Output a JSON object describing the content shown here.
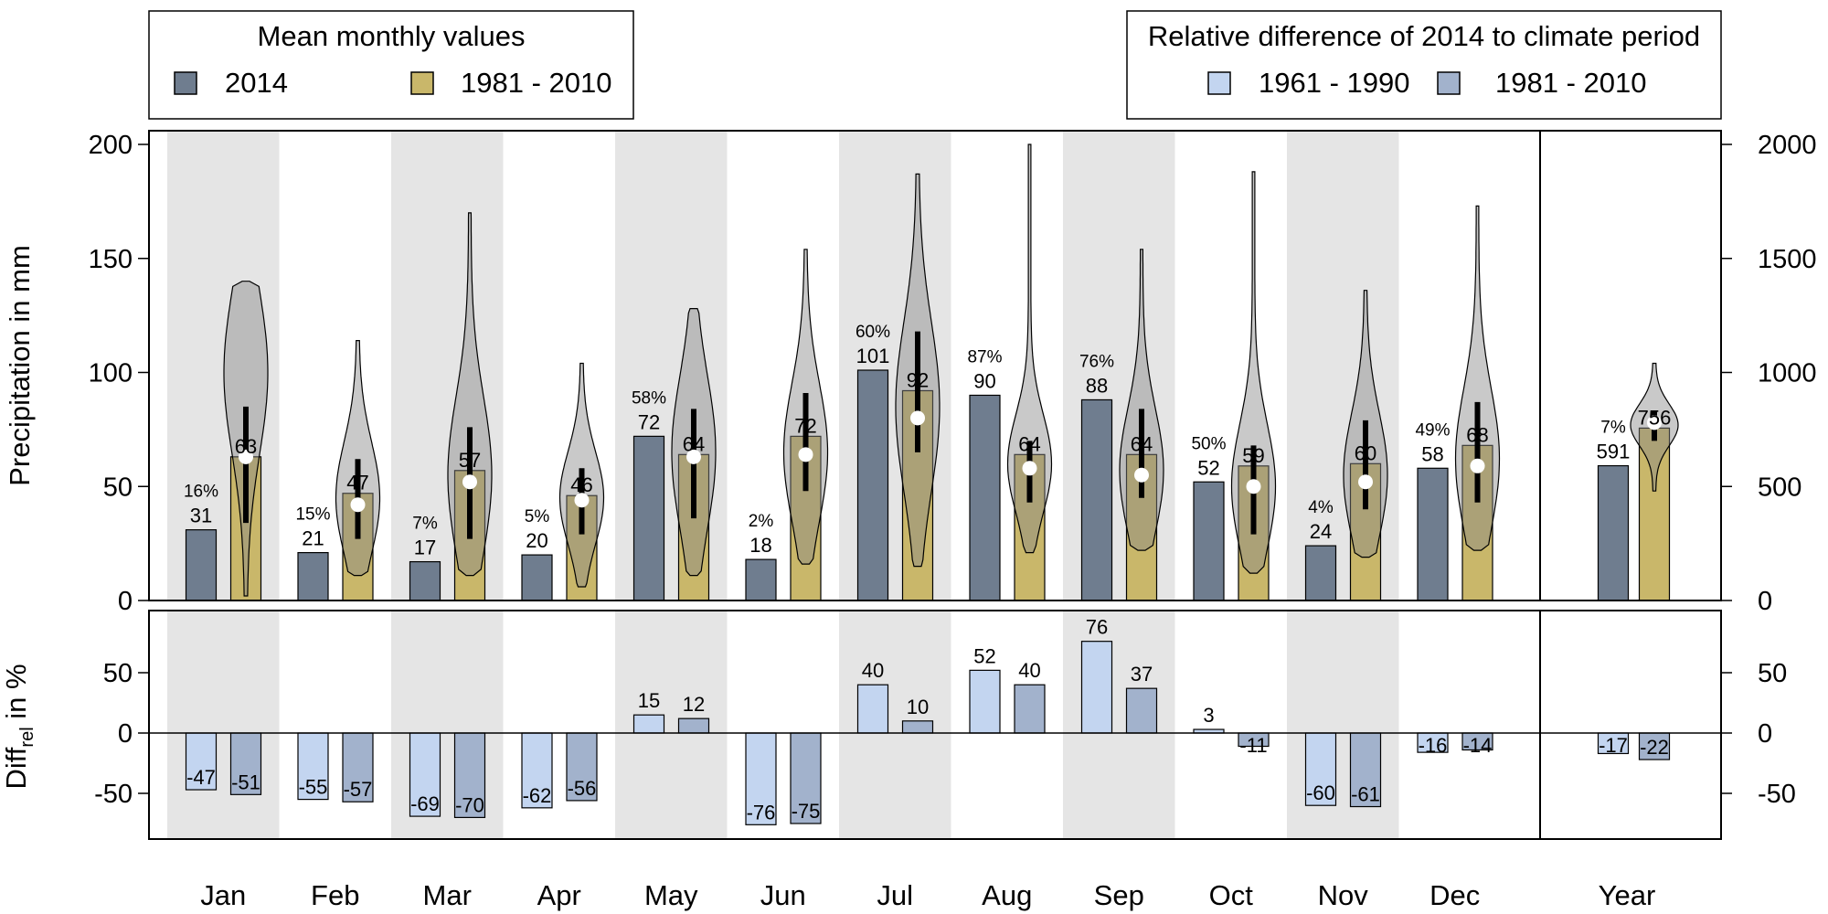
{
  "chart_data": {
    "type": "bar",
    "months": [
      "Jan",
      "Feb",
      "Mar",
      "Apr",
      "May",
      "Jun",
      "Jul",
      "Aug",
      "Sep",
      "Oct",
      "Nov",
      "Dec"
    ],
    "year_label": "Year",
    "legend_left": {
      "title": "Mean monthly values",
      "entries": [
        {
          "label": "2014",
          "color": "#6f7d8f"
        },
        {
          "label": "1981 - 2010",
          "color": "#c9b76a"
        }
      ]
    },
    "legend_right": {
      "title": "Relative difference of 2014 to climate period",
      "entries": [
        {
          "label": "1961 - 1990",
          "color": "#c3d5f0"
        },
        {
          "label": "1981 - 2010",
          "color": "#a2b2cc"
        }
      ]
    },
    "top": {
      "ylabel": "Precipitation in mm",
      "ylim": [
        0,
        200
      ],
      "yticks": [
        0,
        50,
        100,
        150,
        200
      ],
      "right_yticks": [
        0,
        500,
        1000,
        1500,
        2000
      ],
      "right_ylim": [
        0,
        2000
      ],
      "series_2014": {
        "name": "2014",
        "values": [
          31,
          21,
          17,
          20,
          72,
          18,
          101,
          90,
          88,
          52,
          24,
          58
        ],
        "pct": [
          "16%",
          "15%",
          "7%",
          "5%",
          "58%",
          "2%",
          "60%",
          "87%",
          "76%",
          "50%",
          "4%",
          "49%"
        ],
        "year_value": 591,
        "year_pct": "7%"
      },
      "series_clim": {
        "name": "1981 - 2010",
        "values": [
          63,
          47,
          57,
          46,
          64,
          72,
          92,
          64,
          64,
          59,
          60,
          68
        ],
        "year_value": 756
      },
      "violins": [
        {
          "min": 2,
          "max": 140,
          "median": 63,
          "q1": 34,
          "q3": 85,
          "mode": 100
        },
        {
          "min": 11,
          "max": 114,
          "median": 42,
          "q1": 27,
          "q3": 62,
          "mode": 45
        },
        {
          "min": 11,
          "max": 170,
          "median": 52,
          "q1": 27,
          "q3": 76,
          "mode": 55
        },
        {
          "min": 6,
          "max": 104,
          "median": 44,
          "q1": 29,
          "q3": 58,
          "mode": 45
        },
        {
          "min": 11,
          "max": 128,
          "median": 63,
          "q1": 36,
          "q3": 84,
          "mode": 65
        },
        {
          "min": 16,
          "max": 154,
          "median": 64,
          "q1": 48,
          "q3": 91,
          "mode": 65
        },
        {
          "min": 15,
          "max": 187,
          "median": 80,
          "q1": 65,
          "q3": 118,
          "mode": 85
        },
        {
          "min": 21,
          "max": 200,
          "median": 58,
          "q1": 43,
          "q3": 70,
          "mode": 60
        },
        {
          "min": 22,
          "max": 154,
          "median": 55,
          "q1": 45,
          "q3": 84,
          "mode": 57
        },
        {
          "min": 12,
          "max": 188,
          "median": 50,
          "q1": 29,
          "q3": 68,
          "mode": 50
        },
        {
          "min": 19,
          "max": 136,
          "median": 52,
          "q1": 40,
          "q3": 79,
          "mode": 55
        },
        {
          "min": 22,
          "max": 173,
          "median": 59,
          "q1": 43,
          "q3": 87,
          "mode": 62
        }
      ],
      "year_violin": {
        "min": 480,
        "max": 1040,
        "median": 780,
        "q1": 700,
        "q3": 830,
        "mode": 770
      }
    },
    "bottom": {
      "ylabel_main": "Diff",
      "ylabel_sub": "rel",
      "ylabel_tail": " in %",
      "ylim": [
        -90,
        100
      ],
      "yticks": [
        -50,
        0,
        50
      ],
      "series_6190": {
        "name": "1961 - 1990",
        "values": [
          -47,
          -55,
          -69,
          -62,
          15,
          -76,
          40,
          52,
          76,
          3,
          -60,
          -16
        ],
        "year_value": -17
      },
      "series_8110": {
        "name": "1981 - 2010",
        "values": [
          -51,
          -57,
          -70,
          -56,
          12,
          -75,
          10,
          40,
          37,
          -11,
          -61,
          -14
        ],
        "year_value": -22
      }
    },
    "shaded_months": [
      0,
      2,
      4,
      6,
      8,
      10
    ],
    "grid": false
  }
}
